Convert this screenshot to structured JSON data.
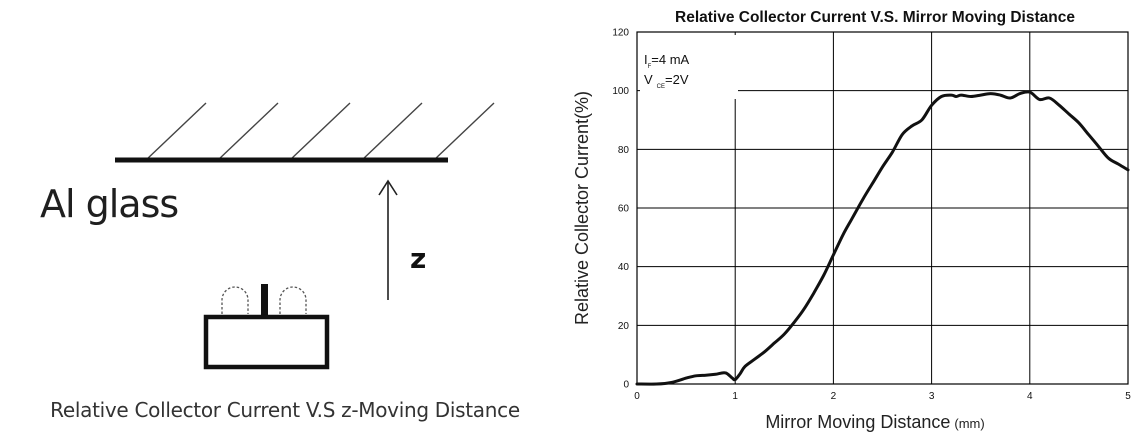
{
  "diagram": {
    "surface_label": "Al glass",
    "axis_label": "z",
    "caption": "Relative Collector Current V.S z-Moving Distance"
  },
  "chart_data": {
    "type": "line",
    "title": "Relative Collector Current V.S. Mirror Moving Distance",
    "xlabel": "Mirror Moving Distance",
    "xlabel_unit": "(mm)",
    "ylabel": "Relative Collector Current(%)",
    "xlim": [
      0,
      5
    ],
    "ylim": [
      0,
      120
    ],
    "x_ticks": [
      "0",
      "1",
      "2",
      "3",
      "4",
      "5"
    ],
    "y_ticks": [
      "0",
      "20",
      "40",
      "60",
      "80",
      "100",
      "120"
    ],
    "grid": true,
    "annotation_lines": [
      {
        "symbol": "I",
        "sub": "F",
        "value": "=4 mA"
      },
      {
        "symbol": "V",
        "sub": "CE",
        "value": "=2V"
      }
    ],
    "series": [
      {
        "x": [
          0,
          0.2,
          0.35,
          0.5,
          0.6,
          0.7,
          0.8,
          0.9,
          0.97,
          1.0,
          1.05,
          1.1,
          1.2,
          1.3,
          1.4,
          1.5,
          1.6,
          1.7,
          1.8,
          1.9,
          2.0,
          2.1,
          2.2,
          2.3,
          2.4,
          2.5,
          2.6,
          2.7,
          2.8,
          2.9,
          3.0,
          3.1,
          3.2,
          3.25,
          3.3,
          3.4,
          3.5,
          3.6,
          3.7,
          3.8,
          3.9,
          4.0,
          4.1,
          4.2,
          4.3,
          4.4,
          4.5,
          4.6,
          4.7,
          4.8,
          4.9,
          5.0
        ],
        "y": [
          0,
          0,
          0.5,
          2,
          2.8,
          3,
          3.3,
          3.8,
          2,
          1.5,
          3.5,
          6,
          8.5,
          11,
          14,
          17,
          21,
          25.5,
          31,
          37,
          44,
          51,
          57,
          63,
          68.5,
          74,
          79,
          85,
          88,
          90,
          95,
          98,
          98.5,
          98,
          98.5,
          98,
          98.5,
          99,
          98.5,
          97.5,
          99,
          99.5,
          97,
          97.5,
          95,
          92,
          89,
          85,
          81,
          77,
          75,
          73
        ]
      }
    ]
  }
}
